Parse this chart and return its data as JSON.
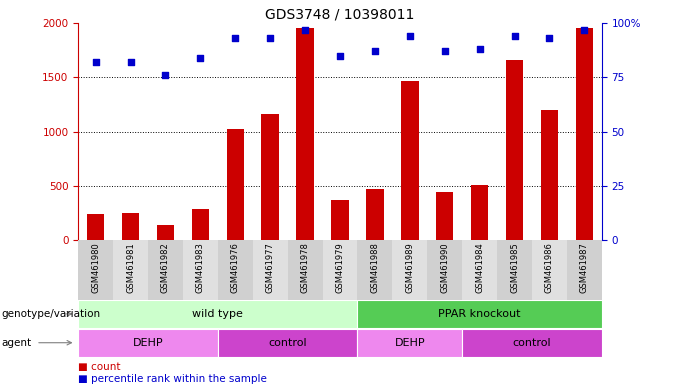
{
  "title": "GDS3748 / 10398011",
  "samples": [
    "GSM461980",
    "GSM461981",
    "GSM461982",
    "GSM461983",
    "GSM461976",
    "GSM461977",
    "GSM461978",
    "GSM461979",
    "GSM461988",
    "GSM461989",
    "GSM461990",
    "GSM461984",
    "GSM461985",
    "GSM461986",
    "GSM461987"
  ],
  "bar_values": [
    240,
    245,
    140,
    290,
    1020,
    1160,
    1950,
    370,
    470,
    1470,
    445,
    510,
    1660,
    1200,
    1950
  ],
  "dot_values": [
    82,
    82,
    76,
    84,
    93,
    93,
    97,
    85,
    87,
    94,
    87,
    88,
    94,
    93,
    97
  ],
  "bar_color": "#cc0000",
  "dot_color": "#0000cc",
  "ylim_left": [
    0,
    2000
  ],
  "ylim_right": [
    0,
    100
  ],
  "yticks_left": [
    0,
    500,
    1000,
    1500,
    2000
  ],
  "yticks_right": [
    0,
    25,
    50,
    75,
    100
  ],
  "grid_values": [
    500,
    1000,
    1500
  ],
  "genotype_groups": [
    {
      "label": "wild type",
      "start": 0,
      "end": 8,
      "color": "#ccffcc"
    },
    {
      "label": "PPAR knockout",
      "start": 8,
      "end": 15,
      "color": "#55cc55"
    }
  ],
  "agent_groups": [
    {
      "label": "DEHP",
      "start": 0,
      "end": 4,
      "color": "#ee88ee"
    },
    {
      "label": "control",
      "start": 4,
      "end": 8,
      "color": "#cc44cc"
    },
    {
      "label": "DEHP",
      "start": 8,
      "end": 11,
      "color": "#ee88ee"
    },
    {
      "label": "control",
      "start": 11,
      "end": 15,
      "color": "#cc44cc"
    }
  ],
  "legend_count_label": "count",
  "legend_pct_label": "percentile rank within the sample",
  "genotype_label": "genotype/variation",
  "agent_label": "agent",
  "bg_color": "#ffffff",
  "bar_width": 0.5,
  "col_colors": [
    "#d0d0d0",
    "#e0e0e0"
  ]
}
